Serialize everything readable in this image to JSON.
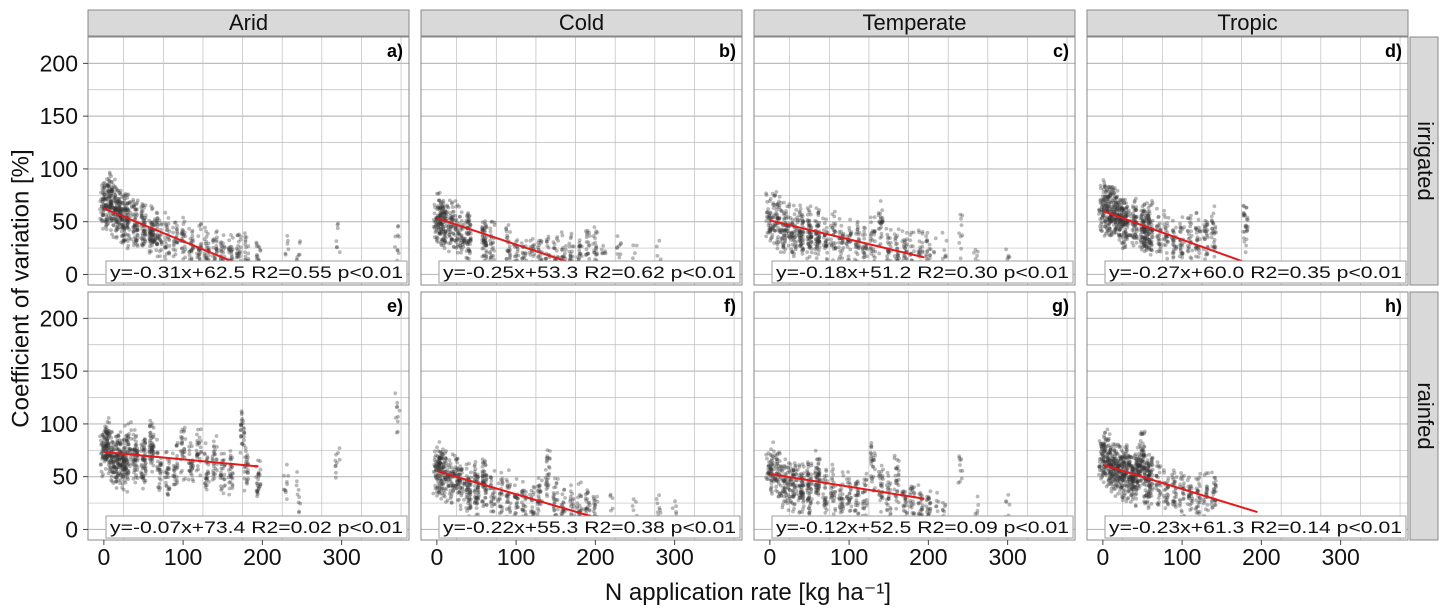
{
  "chart_data": {
    "type": "scatter",
    "title": "",
    "xlabel": "N application rate [kg ha⁻¹]",
    "ylabel": "Coefficient of variation [%]",
    "xlim": [
      -20,
      385
    ],
    "ylim": [
      -10,
      225
    ],
    "x_ticks": [
      0,
      100,
      200,
      300
    ],
    "y_ticks": [
      0,
      50,
      100,
      150,
      200
    ],
    "grid": true,
    "columns": [
      "Arid",
      "Cold",
      "Temperate",
      "Tropic"
    ],
    "rows": [
      "irrigated",
      "rainfed"
    ],
    "colors": {
      "points": "#333333",
      "fit_line": "#e31a1c",
      "strip_bg": "#d9d9d9",
      "grid": "#bdbdbd",
      "panel_border": "#888888"
    },
    "panels": [
      {
        "label": "a)",
        "column": "Arid",
        "row": "irrigated",
        "equation": "y=-0.31x+62.5 R2=0.55 p<0.01",
        "slope": -0.31,
        "intercept": 62.5,
        "fit_x": [
          0,
          195
        ],
        "x_max": 370,
        "clusters": [
          [
            0,
            62
          ],
          [
            5,
            72
          ],
          [
            10,
            70
          ],
          [
            15,
            60
          ],
          [
            20,
            58
          ],
          [
            25,
            55
          ],
          [
            30,
            52
          ],
          [
            40,
            48
          ],
          [
            50,
            45
          ],
          [
            60,
            40
          ],
          [
            65,
            38
          ],
          [
            70,
            35
          ],
          [
            80,
            33
          ],
          [
            90,
            30
          ],
          [
            100,
            28
          ],
          [
            110,
            26
          ],
          [
            120,
            25
          ],
          [
            130,
            22
          ],
          [
            140,
            20
          ],
          [
            150,
            20
          ],
          [
            160,
            18
          ],
          [
            170,
            18
          ],
          [
            180,
            15
          ],
          [
            195,
            15
          ],
          [
            230,
            15
          ],
          [
            245,
            15
          ],
          [
            295,
            25
          ],
          [
            370,
            30
          ]
        ]
      },
      {
        "label": "b)",
        "column": "Cold",
        "row": "irrigated",
        "equation": "y=-0.25x+53.3 R2=0.62 p<0.01",
        "slope": -0.25,
        "intercept": 53.3,
        "fit_x": [
          0,
          195
        ],
        "x_max": 280,
        "clusters": [
          [
            0,
            52
          ],
          [
            5,
            55
          ],
          [
            10,
            48
          ],
          [
            20,
            45
          ],
          [
            30,
            40
          ],
          [
            40,
            38
          ],
          [
            60,
            32
          ],
          [
            70,
            28
          ],
          [
            90,
            22
          ],
          [
            100,
            15
          ],
          [
            110,
            15
          ],
          [
            120,
            15
          ],
          [
            130,
            15
          ],
          [
            140,
            16
          ],
          [
            150,
            14
          ],
          [
            160,
            15
          ],
          [
            170,
            16
          ],
          [
            180,
            18
          ],
          [
            190,
            16
          ],
          [
            200,
            18
          ],
          [
            210,
            20
          ],
          [
            230,
            18
          ],
          [
            250,
            15
          ],
          [
            280,
            12
          ]
        ]
      },
      {
        "label": "c)",
        "column": "Temperate",
        "row": "irrigated",
        "equation": "y=-0.18x+51.2 R2=0.30 p<0.01",
        "slope": -0.18,
        "intercept": 51.2,
        "fit_x": [
          0,
          195
        ],
        "x_max": 300,
        "clusters": [
          [
            0,
            55
          ],
          [
            10,
            52
          ],
          [
            20,
            45
          ],
          [
            30,
            42
          ],
          [
            40,
            40
          ],
          [
            50,
            40
          ],
          [
            60,
            38
          ],
          [
            70,
            35
          ],
          [
            80,
            32
          ],
          [
            90,
            30
          ],
          [
            100,
            30
          ],
          [
            110,
            28
          ],
          [
            120,
            25
          ],
          [
            130,
            30
          ],
          [
            140,
            45
          ],
          [
            150,
            22
          ],
          [
            160,
            20
          ],
          [
            170,
            20
          ],
          [
            180,
            18
          ],
          [
            190,
            18
          ],
          [
            200,
            20
          ],
          [
            210,
            18
          ],
          [
            220,
            15
          ],
          [
            240,
            40
          ],
          [
            260,
            15
          ],
          [
            300,
            15
          ]
        ]
      },
      {
        "label": "d)",
        "column": "Tropic",
        "row": "irrigated",
        "equation": "y=-0.27x+60.0 R2=0.35 p<0.01",
        "slope": -0.27,
        "intercept": 60.0,
        "fit_x": [
          0,
          195
        ],
        "x_max": 180,
        "clusters": [
          [
            0,
            62
          ],
          [
            5,
            65
          ],
          [
            10,
            60
          ],
          [
            15,
            58
          ],
          [
            20,
            55
          ],
          [
            25,
            52
          ],
          [
            30,
            50
          ],
          [
            40,
            48
          ],
          [
            50,
            45
          ],
          [
            55,
            42
          ],
          [
            60,
            42
          ],
          [
            70,
            38
          ],
          [
            80,
            35
          ],
          [
            90,
            32
          ],
          [
            100,
            30
          ],
          [
            110,
            32
          ],
          [
            120,
            35
          ],
          [
            130,
            38
          ],
          [
            140,
            40
          ],
          [
            180,
            45
          ]
        ]
      },
      {
        "label": "e)",
        "column": "Arid",
        "row": "rainfed",
        "equation": "y=-0.07x+73.4 R2=0.02 p<0.01",
        "slope": -0.07,
        "intercept": 73.4,
        "fit_x": [
          0,
          195
        ],
        "x_max": 370,
        "clusters": [
          [
            0,
            75
          ],
          [
            5,
            80
          ],
          [
            10,
            70
          ],
          [
            15,
            65
          ],
          [
            20,
            68
          ],
          [
            25,
            60
          ],
          [
            30,
            75
          ],
          [
            40,
            70
          ],
          [
            50,
            65
          ],
          [
            60,
            80
          ],
          [
            70,
            60
          ],
          [
            80,
            55
          ],
          [
            90,
            60
          ],
          [
            100,
            70
          ],
          [
            110,
            60
          ],
          [
            120,
            75
          ],
          [
            130,
            55
          ],
          [
            140,
            70
          ],
          [
            150,
            50
          ],
          [
            160,
            55
          ],
          [
            175,
            95
          ],
          [
            180,
            60
          ],
          [
            195,
            45
          ],
          [
            230,
            40
          ],
          [
            245,
            30
          ],
          [
            295,
            60
          ],
          [
            370,
            115
          ]
        ]
      },
      {
        "label": "f)",
        "column": "Cold",
        "row": "rainfed",
        "equation": "y=-0.22x+55.3 R2=0.38 p<0.01",
        "slope": -0.22,
        "intercept": 55.3,
        "fit_x": [
          0,
          195
        ],
        "x_max": 300,
        "clusters": [
          [
            0,
            55
          ],
          [
            5,
            60
          ],
          [
            10,
            50
          ],
          [
            20,
            48
          ],
          [
            30,
            45
          ],
          [
            40,
            40
          ],
          [
            50,
            40
          ],
          [
            60,
            45
          ],
          [
            70,
            35
          ],
          [
            80,
            30
          ],
          [
            90,
            30
          ],
          [
            100,
            25
          ],
          [
            110,
            22
          ],
          [
            120,
            20
          ],
          [
            130,
            35
          ],
          [
            140,
            55
          ],
          [
            150,
            25
          ],
          [
            160,
            20
          ],
          [
            170,
            20
          ],
          [
            180,
            18
          ],
          [
            190,
            18
          ],
          [
            200,
            18
          ],
          [
            220,
            15
          ],
          [
            250,
            12
          ],
          [
            280,
            12
          ],
          [
            300,
            10
          ]
        ]
      },
      {
        "label": "g)",
        "column": "Temperate",
        "row": "rainfed",
        "equation": "y=-0.12x+52.5 R2=0.09 p<0.01",
        "slope": -0.12,
        "intercept": 52.5,
        "fit_x": [
          0,
          195
        ],
        "x_max": 300,
        "clusters": [
          [
            0,
            55
          ],
          [
            10,
            50
          ],
          [
            20,
            45
          ],
          [
            30,
            40
          ],
          [
            40,
            40
          ],
          [
            50,
            40
          ],
          [
            60,
            50
          ],
          [
            70,
            35
          ],
          [
            80,
            35
          ],
          [
            90,
            30
          ],
          [
            100,
            30
          ],
          [
            110,
            28
          ],
          [
            120,
            30
          ],
          [
            130,
            60
          ],
          [
            140,
            40
          ],
          [
            150,
            30
          ],
          [
            160,
            45
          ],
          [
            170,
            25
          ],
          [
            180,
            25
          ],
          [
            190,
            20
          ],
          [
            200,
            20
          ],
          [
            210,
            18
          ],
          [
            220,
            20
          ],
          [
            240,
            60
          ],
          [
            260,
            15
          ],
          [
            300,
            20
          ]
        ]
      },
      {
        "label": "h)",
        "column": "Tropic",
        "row": "rainfed",
        "equation": "y=-0.23x+61.3 R2=0.14 p<0.01",
        "slope": -0.23,
        "intercept": 61.3,
        "fit_x": [
          0,
          195
        ],
        "x_max": 140,
        "clusters": [
          [
            0,
            65
          ],
          [
            5,
            70
          ],
          [
            10,
            60
          ],
          [
            15,
            55
          ],
          [
            20,
            55
          ],
          [
            25,
            52
          ],
          [
            30,
            60
          ],
          [
            35,
            50
          ],
          [
            40,
            45
          ],
          [
            45,
            55
          ],
          [
            50,
            70
          ],
          [
            55,
            45
          ],
          [
            60,
            50
          ],
          [
            70,
            40
          ],
          [
            80,
            35
          ],
          [
            90,
            35
          ],
          [
            100,
            35
          ],
          [
            110,
            30
          ],
          [
            120,
            30
          ],
          [
            130,
            30
          ],
          [
            140,
            35
          ]
        ]
      }
    ]
  }
}
